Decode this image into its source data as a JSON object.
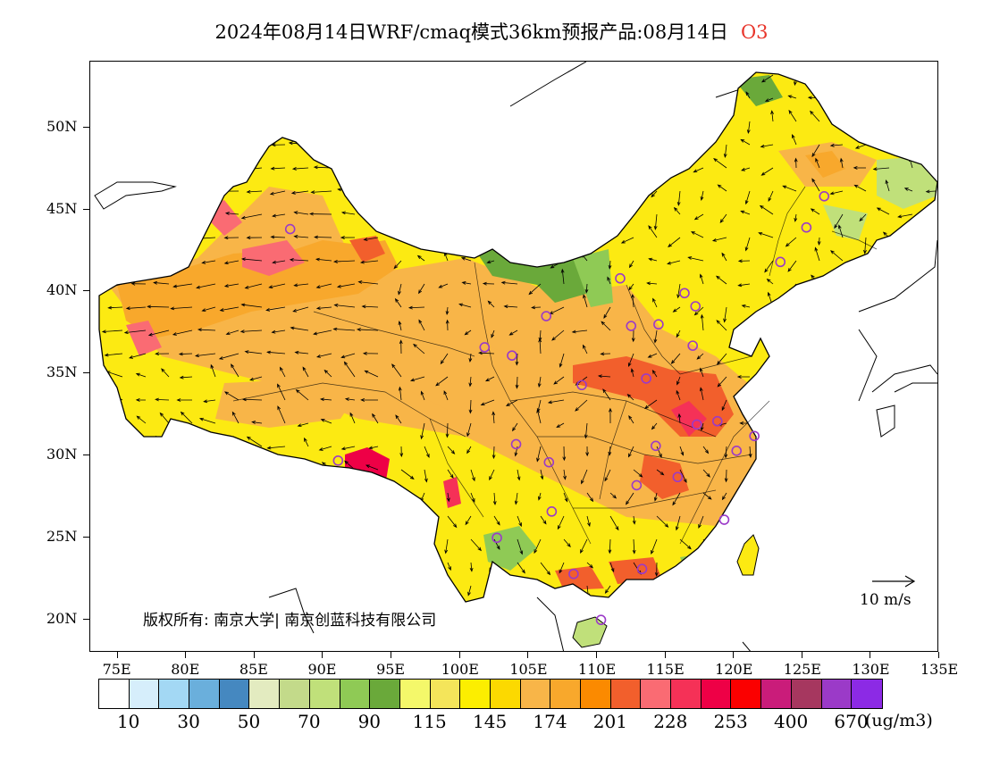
{
  "title": {
    "text": "2024年08月14日WRF/cmaq模式36km预报产品:08月14日",
    "species": "O3"
  },
  "axes": {
    "lat_labels": [
      "50N",
      "45N",
      "40N",
      "35N",
      "30N",
      "25N",
      "20N"
    ],
    "lon_labels": [
      "75E",
      "80E",
      "85E",
      "90E",
      "95E",
      "100E",
      "105E",
      "110E",
      "115E",
      "120E",
      "125E",
      "130E",
      "135E"
    ]
  },
  "wind_scale": {
    "label": "10 m/s"
  },
  "copyright": "版权所有: 南京大学| 南京创蓝科技有限公司",
  "legend": {
    "colors": [
      "#ffffff",
      "#d6eefb",
      "#a3d8f4",
      "#6aafdc",
      "#4588c0",
      "#e3ebc0",
      "#c3da8a",
      "#c0e07a",
      "#8fca55",
      "#6aa93a",
      "#f4f86a",
      "#f4e55a",
      "#fcee00",
      "#fcd900",
      "#f8b548",
      "#f8a82c",
      "#fb8a00",
      "#f25f2c",
      "#fa6b73",
      "#f53157",
      "#ee0046",
      "#fb0000",
      "#ca1c7a",
      "#a6375f",
      "#9b3ac8",
      "#8c2ae5"
    ],
    "labels": [
      "10",
      "30",
      "50",
      "70",
      "90",
      "115",
      "145",
      "174",
      "201",
      "228",
      "253",
      "400",
      "670"
    ],
    "unit": "(ug/m3)"
  },
  "map": {
    "projection": "lat-lon",
    "lon_range": [
      73,
      135
    ],
    "lat_range": [
      18,
      54
    ],
    "colors": {
      "base_yellow": "#fcea12",
      "orange_light": "#f8b548",
      "orange": "#f8a82c",
      "orange_dark": "#f25f2c",
      "red": "#ee0046",
      "pink": "#fa6b73",
      "green": "#8fca55",
      "green_dark": "#6aa93a",
      "green_light": "#c0e07a",
      "pale_green": "#e3ebc0",
      "yellow_pale": "#f4f86a",
      "site_marker": "#9b3ac8"
    },
    "sites": [
      {
        "lon": 87.6,
        "lat": 43.8
      },
      {
        "lon": 101.8,
        "lat": 36.6
      },
      {
        "lon": 103.8,
        "lat": 36.1
      },
      {
        "lon": 106.3,
        "lat": 38.5
      },
      {
        "lon": 111.7,
        "lat": 40.8
      },
      {
        "lon": 112.5,
        "lat": 37.9
      },
      {
        "lon": 114.5,
        "lat": 38.0
      },
      {
        "lon": 116.4,
        "lat": 39.9
      },
      {
        "lon": 117.2,
        "lat": 39.1
      },
      {
        "lon": 123.4,
        "lat": 41.8
      },
      {
        "lon": 125.3,
        "lat": 43.9
      },
      {
        "lon": 126.6,
        "lat": 45.8
      },
      {
        "lon": 117.0,
        "lat": 36.7
      },
      {
        "lon": 108.9,
        "lat": 34.3
      },
      {
        "lon": 113.6,
        "lat": 34.7
      },
      {
        "lon": 117.3,
        "lat": 31.9
      },
      {
        "lon": 118.8,
        "lat": 32.1
      },
      {
        "lon": 121.5,
        "lat": 31.2
      },
      {
        "lon": 120.2,
        "lat": 30.3
      },
      {
        "lon": 114.3,
        "lat": 30.6
      },
      {
        "lon": 112.9,
        "lat": 28.2
      },
      {
        "lon": 115.9,
        "lat": 28.7
      },
      {
        "lon": 119.3,
        "lat": 26.1
      },
      {
        "lon": 106.5,
        "lat": 29.6
      },
      {
        "lon": 104.1,
        "lat": 30.7
      },
      {
        "lon": 106.7,
        "lat": 26.6
      },
      {
        "lon": 102.7,
        "lat": 25.0
      },
      {
        "lon": 108.3,
        "lat": 22.8
      },
      {
        "lon": 113.3,
        "lat": 23.1
      },
      {
        "lon": 110.3,
        "lat": 20.0
      },
      {
        "lon": 91.1,
        "lat": 29.7
      }
    ]
  }
}
